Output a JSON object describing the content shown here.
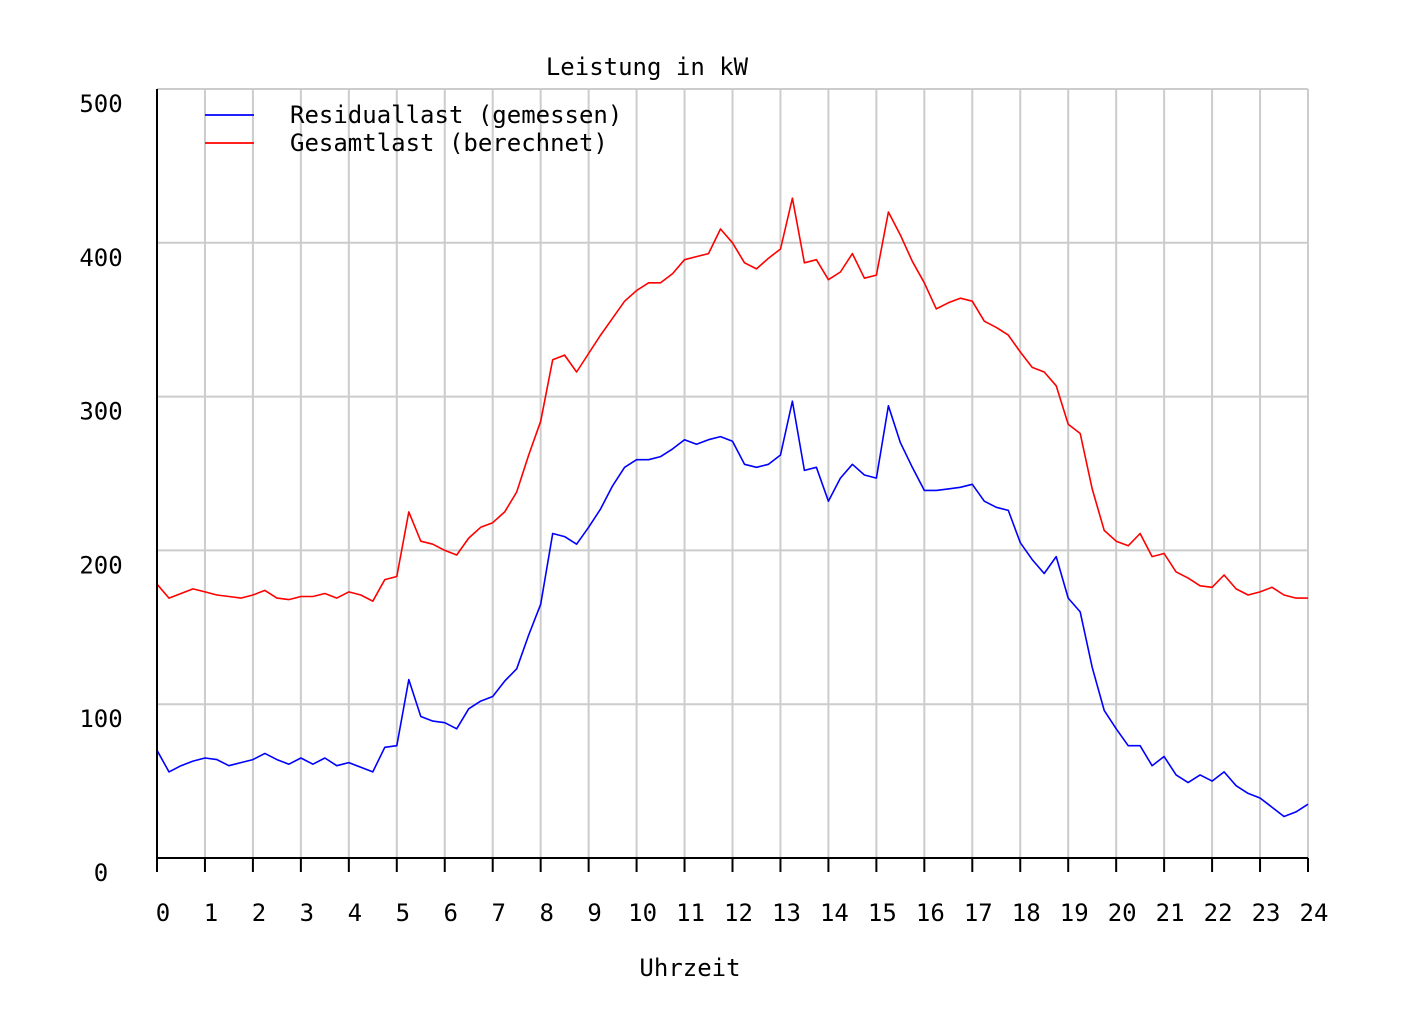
{
  "chart_data": {
    "type": "line",
    "title": "Leistung in kW",
    "xlabel": "Uhrzeit",
    "ylabel": "",
    "xlim": [
      0,
      24
    ],
    "ylim": [
      0,
      500
    ],
    "x_ticks": [
      "0",
      "1",
      "2",
      "3",
      "4",
      "5",
      "6",
      "7",
      "8",
      "9",
      "10",
      "11",
      "12",
      "13",
      "14",
      "15",
      "16",
      "17",
      "18",
      "19",
      "20",
      "21",
      "22",
      "23",
      "24"
    ],
    "y_ticks": [
      "0",
      "100",
      "200",
      "300",
      "400",
      "500"
    ],
    "grid": true,
    "legend_position": "top-left",
    "series": [
      {
        "name": "Residuallast (gemessen)",
        "color": "#0000ff",
        "points": [
          [
            0.0,
            70
          ],
          [
            0.25,
            56
          ],
          [
            0.5,
            60
          ],
          [
            0.75,
            63
          ],
          [
            1.0,
            65
          ],
          [
            1.25,
            64
          ],
          [
            1.5,
            60
          ],
          [
            1.75,
            62
          ],
          [
            2.0,
            64
          ],
          [
            2.25,
            68
          ],
          [
            2.5,
            64
          ],
          [
            2.75,
            61
          ],
          [
            3.0,
            65
          ],
          [
            3.25,
            61
          ],
          [
            3.5,
            65
          ],
          [
            3.75,
            60
          ],
          [
            4.0,
            62
          ],
          [
            4.25,
            59
          ],
          [
            4.5,
            56
          ],
          [
            4.75,
            72
          ],
          [
            5.0,
            73
          ],
          [
            5.25,
            116
          ],
          [
            5.5,
            92
          ],
          [
            5.75,
            89
          ],
          [
            6.0,
            88
          ],
          [
            6.25,
            84
          ],
          [
            6.5,
            97
          ],
          [
            6.75,
            102
          ],
          [
            7.0,
            105
          ],
          [
            7.25,
            115
          ],
          [
            7.5,
            123
          ],
          [
            7.75,
            145
          ],
          [
            8.0,
            165
          ],
          [
            8.25,
            211
          ],
          [
            8.5,
            209
          ],
          [
            8.75,
            204
          ],
          [
            9.0,
            215
          ],
          [
            9.25,
            227
          ],
          [
            9.5,
            242
          ],
          [
            9.75,
            254
          ],
          [
            10.0,
            259
          ],
          [
            10.25,
            259
          ],
          [
            10.5,
            261
          ],
          [
            10.75,
            266
          ],
          [
            11.0,
            272
          ],
          [
            11.25,
            269
          ],
          [
            11.5,
            272
          ],
          [
            11.75,
            274
          ],
          [
            12.0,
            271
          ],
          [
            12.25,
            256
          ],
          [
            12.5,
            254
          ],
          [
            12.75,
            256
          ],
          [
            13.0,
            262
          ],
          [
            13.25,
            297
          ],
          [
            13.5,
            252
          ],
          [
            13.75,
            254
          ],
          [
            14.0,
            232
          ],
          [
            14.25,
            247
          ],
          [
            14.5,
            256
          ],
          [
            14.75,
            249
          ],
          [
            15.0,
            247
          ],
          [
            15.25,
            294
          ],
          [
            15.5,
            270
          ],
          [
            15.75,
            254
          ],
          [
            16.0,
            239
          ],
          [
            16.25,
            239
          ],
          [
            16.5,
            240
          ],
          [
            16.75,
            241
          ],
          [
            17.0,
            243
          ],
          [
            17.25,
            232
          ],
          [
            17.5,
            228
          ],
          [
            17.75,
            226
          ],
          [
            18.0,
            205
          ],
          [
            18.25,
            194
          ],
          [
            18.5,
            185
          ],
          [
            18.75,
            196
          ],
          [
            19.0,
            169
          ],
          [
            19.25,
            160
          ],
          [
            19.5,
            124
          ],
          [
            19.75,
            96
          ],
          [
            20.0,
            84
          ],
          [
            20.25,
            73
          ],
          [
            20.5,
            73
          ],
          [
            20.75,
            60
          ],
          [
            21.0,
            66
          ],
          [
            21.25,
            54
          ],
          [
            21.5,
            49
          ],
          [
            21.75,
            54
          ],
          [
            22.0,
            50
          ],
          [
            22.25,
            56
          ],
          [
            22.5,
            47
          ],
          [
            22.75,
            42
          ],
          [
            23.0,
            39
          ],
          [
            23.25,
            33
          ],
          [
            23.5,
            27
          ],
          [
            23.75,
            30
          ],
          [
            24.0,
            35
          ]
        ]
      },
      {
        "name": "Gesamtlast (berechnet)",
        "color": "#ff0000",
        "points": [
          [
            0.0,
            178
          ],
          [
            0.25,
            169
          ],
          [
            0.5,
            172
          ],
          [
            0.75,
            175
          ],
          [
            1.0,
            173
          ],
          [
            1.25,
            171
          ],
          [
            1.5,
            170
          ],
          [
            1.75,
            169
          ],
          [
            2.0,
            171
          ],
          [
            2.25,
            174
          ],
          [
            2.5,
            169
          ],
          [
            2.75,
            168
          ],
          [
            3.0,
            170
          ],
          [
            3.25,
            170
          ],
          [
            3.5,
            172
          ],
          [
            3.75,
            169
          ],
          [
            4.0,
            173
          ],
          [
            4.25,
            171
          ],
          [
            4.5,
            167
          ],
          [
            4.75,
            181
          ],
          [
            5.0,
            183
          ],
          [
            5.25,
            225
          ],
          [
            5.5,
            206
          ],
          [
            5.75,
            204
          ],
          [
            6.0,
            200
          ],
          [
            6.25,
            197
          ],
          [
            6.5,
            208
          ],
          [
            6.75,
            215
          ],
          [
            7.0,
            218
          ],
          [
            7.25,
            225
          ],
          [
            7.5,
            238
          ],
          [
            7.75,
            262
          ],
          [
            8.0,
            284
          ],
          [
            8.25,
            324
          ],
          [
            8.5,
            327
          ],
          [
            8.75,
            316
          ],
          [
            9.0,
            328
          ],
          [
            9.25,
            340
          ],
          [
            9.5,
            351
          ],
          [
            9.75,
            362
          ],
          [
            10.0,
            369
          ],
          [
            10.25,
            374
          ],
          [
            10.5,
            374
          ],
          [
            10.75,
            380
          ],
          [
            11.0,
            389
          ],
          [
            11.25,
            391
          ],
          [
            11.5,
            393
          ],
          [
            11.75,
            409
          ],
          [
            12.0,
            400
          ],
          [
            12.25,
            387
          ],
          [
            12.5,
            383
          ],
          [
            12.75,
            390
          ],
          [
            13.0,
            396
          ],
          [
            13.25,
            429
          ],
          [
            13.5,
            387
          ],
          [
            13.75,
            389
          ],
          [
            14.0,
            376
          ],
          [
            14.25,
            381
          ],
          [
            14.5,
            393
          ],
          [
            14.75,
            377
          ],
          [
            15.0,
            379
          ],
          [
            15.25,
            420
          ],
          [
            15.5,
            405
          ],
          [
            15.75,
            388
          ],
          [
            16.0,
            374
          ],
          [
            16.25,
            357
          ],
          [
            16.5,
            361
          ],
          [
            16.75,
            364
          ],
          [
            17.0,
            362
          ],
          [
            17.25,
            349
          ],
          [
            17.5,
            345
          ],
          [
            17.75,
            340
          ],
          [
            18.0,
            329
          ],
          [
            18.25,
            319
          ],
          [
            18.5,
            316
          ],
          [
            18.75,
            307
          ],
          [
            19.0,
            282
          ],
          [
            19.25,
            276
          ],
          [
            19.5,
            240
          ],
          [
            19.75,
            213
          ],
          [
            20.0,
            206
          ],
          [
            20.25,
            203
          ],
          [
            20.5,
            211
          ],
          [
            20.75,
            196
          ],
          [
            21.0,
            198
          ],
          [
            21.25,
            186
          ],
          [
            21.5,
            182
          ],
          [
            21.75,
            177
          ],
          [
            22.0,
            176
          ],
          [
            22.25,
            184
          ],
          [
            22.5,
            175
          ],
          [
            22.75,
            171
          ],
          [
            23.0,
            173
          ],
          [
            23.25,
            176
          ],
          [
            23.5,
            171
          ],
          [
            23.75,
            169
          ],
          [
            24.0,
            169
          ]
        ]
      }
    ]
  }
}
